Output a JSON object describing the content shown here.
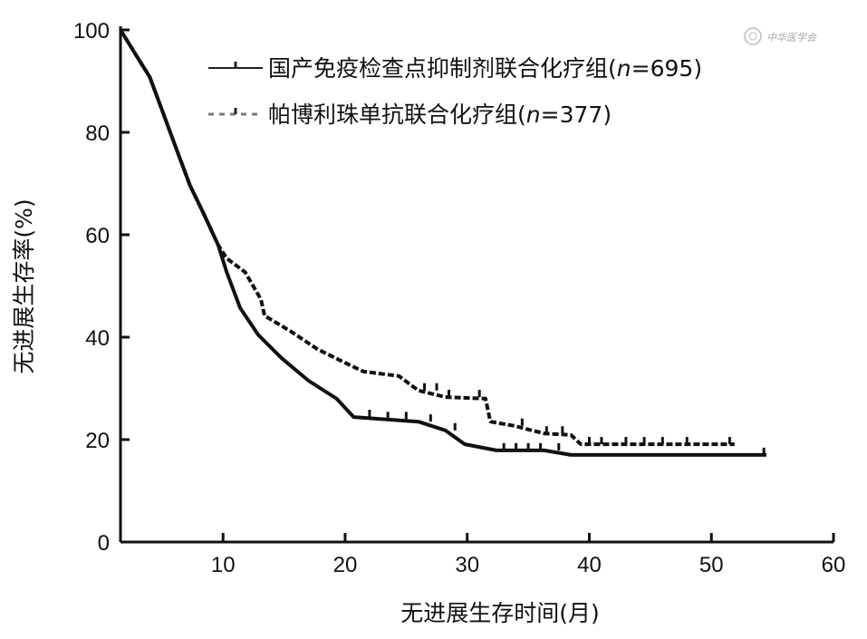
{
  "chart_data": {
    "type": "line",
    "subtype": "kaplan-meier",
    "title": "",
    "xlabel": "无进展生存时间(月)",
    "ylabel": "无进展生存率(%)",
    "xlim": [
      1.6,
      60
    ],
    "ylim": [
      0,
      100
    ],
    "xticks": [
      10,
      20,
      30,
      40,
      50,
      60
    ],
    "yticks": [
      0,
      20,
      40,
      60,
      80,
      100
    ],
    "grid": false,
    "legend_position": "top-right",
    "series": [
      {
        "name": "国产免疫检查点抑制剂联合化疗组",
        "n_label": "n",
        "n_value": "=695",
        "style": "solid",
        "color": "#111111",
        "x": [
          1.6,
          2.9,
          4.0,
          5.1,
          6.2,
          7.3,
          8.4,
          9.6,
          10.3,
          11.4,
          12.9,
          14.8,
          17.0,
          19.3,
          20.7,
          23.0,
          26.0,
          28.2,
          29.8,
          32.4,
          36.3,
          38.5,
          54.5
        ],
        "y": [
          100,
          95,
          90.8,
          83.7,
          76.6,
          69.6,
          64.2,
          58,
          52.7,
          45.7,
          40.4,
          35.9,
          31.5,
          28,
          24.4,
          24,
          23.5,
          21.8,
          19.1,
          17.9,
          17.9,
          17,
          17
        ],
        "censored_x": [
          22,
          23.5,
          25,
          27,
          29,
          33,
          34,
          35,
          36,
          37.5,
          54.3
        ]
      },
      {
        "name": "帕博利珠单抗联合化疗组",
        "n_label": "n",
        "n_value": "=377",
        "style": "dashed",
        "color": "#111111",
        "x": [
          1.6,
          2.9,
          4.0,
          5.1,
          6.2,
          7.3,
          8.4,
          9.6,
          10.3,
          11.8,
          13.1,
          13.4,
          15.5,
          17.7,
          20.0,
          21.5,
          24.4,
          26.0,
          28.2,
          31.5,
          31.9,
          33.8,
          36.3,
          38.5,
          39.3,
          51.9
        ],
        "y": [
          100,
          95,
          90.8,
          83.7,
          76.6,
          69.6,
          64.2,
          58,
          55.4,
          52.7,
          47.4,
          44.2,
          41.2,
          37.7,
          35,
          33.3,
          32.4,
          29.6,
          28.3,
          28,
          23.5,
          22.7,
          21.2,
          20.9,
          19.1,
          19.1
        ],
        "censored_x": [
          26.5,
          27.5,
          28.5,
          31,
          34.5,
          36.5,
          37.8,
          40,
          41,
          43,
          44.5,
          46,
          48,
          51.5
        ]
      }
    ],
    "watermark": "中华医学会"
  }
}
